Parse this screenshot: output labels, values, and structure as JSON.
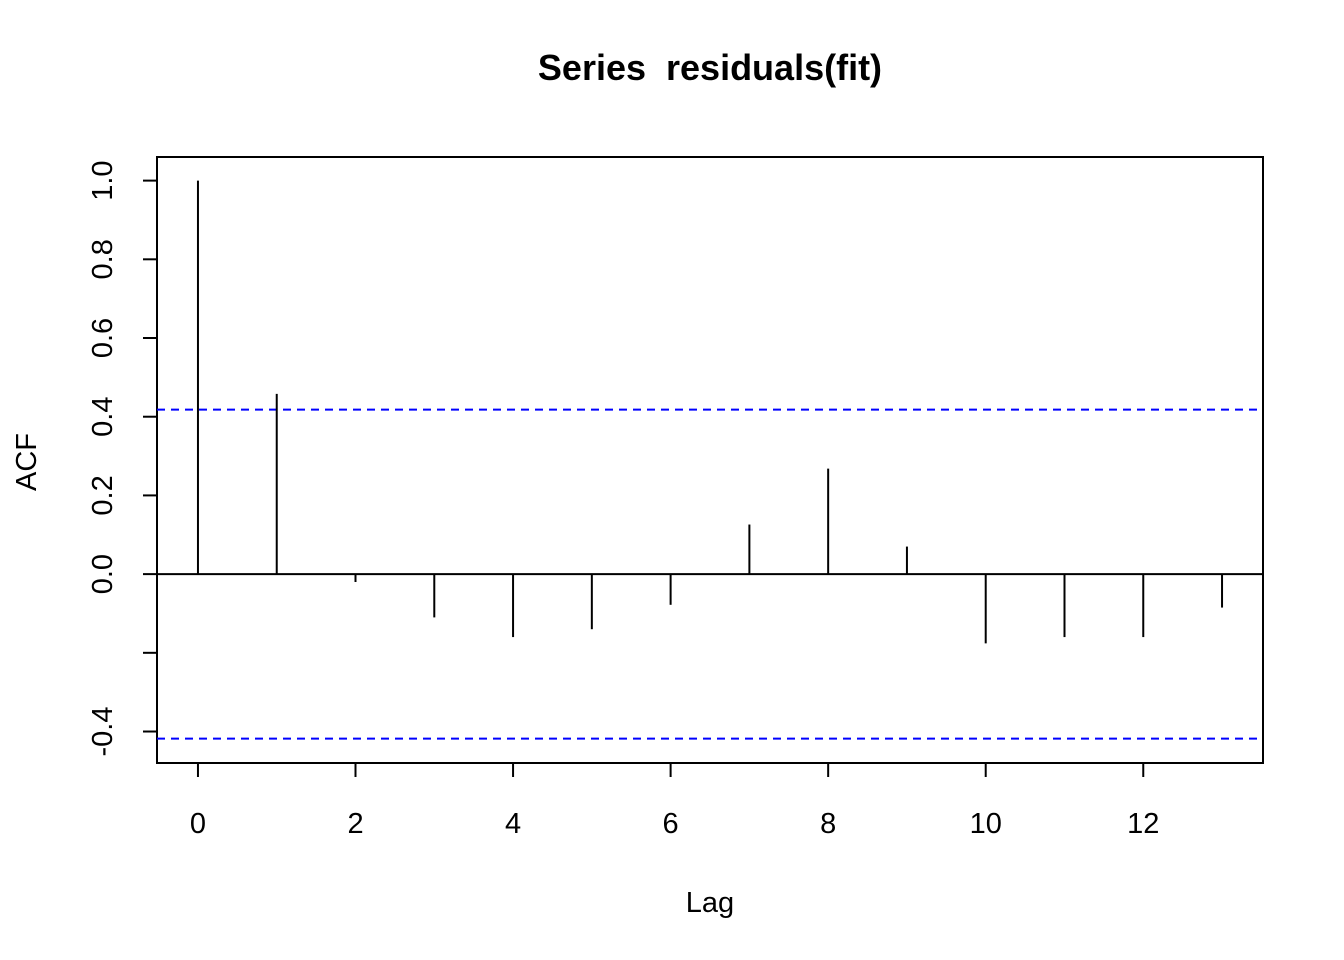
{
  "chart_data": {
    "type": "bar",
    "title": "Series  residuals(fit)",
    "xlabel": "Lag",
    "ylabel": "ACF",
    "x": [
      0,
      1,
      2,
      3,
      4,
      5,
      6,
      7,
      8,
      9,
      10,
      11,
      12,
      13
    ],
    "values": [
      1.0,
      0.458,
      -0.02,
      -0.11,
      -0.16,
      -0.14,
      -0.078,
      0.126,
      0.268,
      0.07,
      -0.176,
      -0.16,
      -0.16,
      -0.085
    ],
    "confidence_bounds": [
      0.418,
      -0.418
    ],
    "xlim": [
      -0.52,
      13.52
    ],
    "ylim": [
      -0.48,
      1.06
    ],
    "xticks": [
      "0",
      "2",
      "4",
      "6",
      "8",
      "10",
      "12"
    ],
    "yticks": [
      "-0.4",
      "0.0",
      "0.2",
      "0.4",
      "0.6",
      "0.8",
      "1.0"
    ],
    "grid": false,
    "colors": {
      "bars": "#000000",
      "bounds": "#0000ff",
      "zero_line": "#000000"
    }
  }
}
